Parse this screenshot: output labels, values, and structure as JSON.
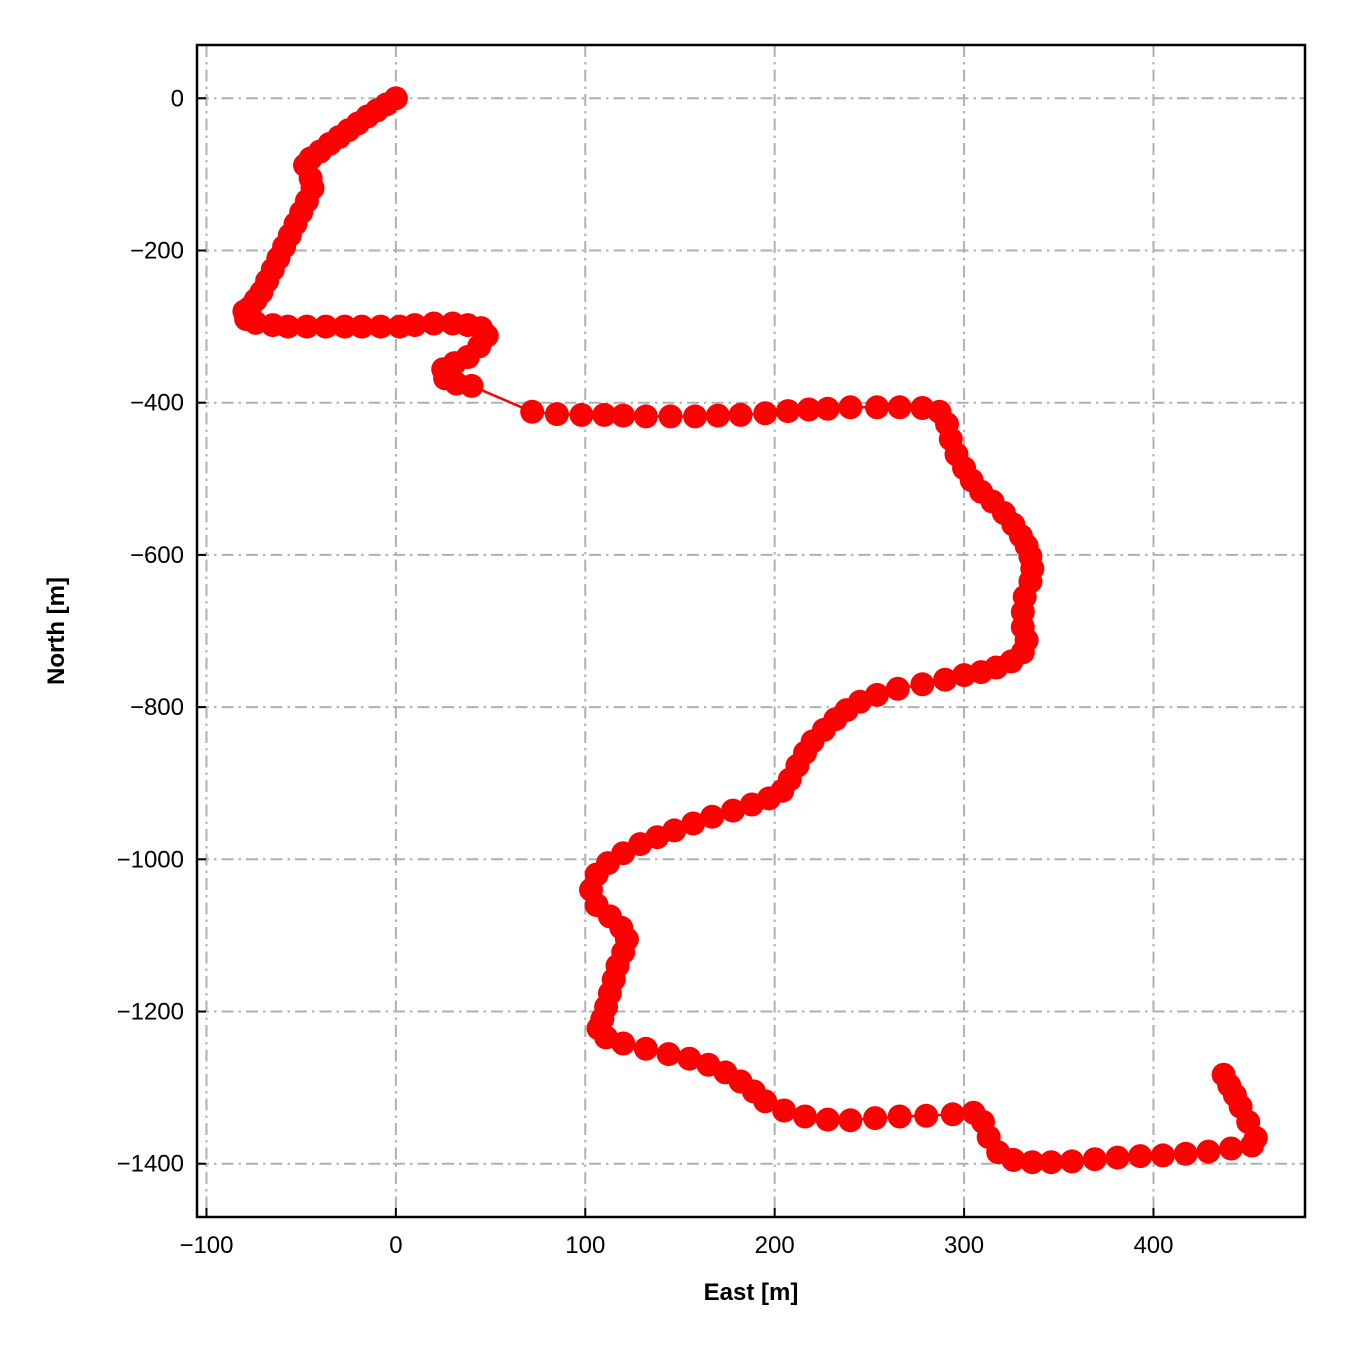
{
  "chart_data": {
    "type": "scatter",
    "title": "",
    "xlabel": "East [m]",
    "ylabel": "North [m]",
    "xlim": [
      -105,
      480
    ],
    "ylim": [
      -1470,
      70
    ],
    "xticks": [
      -100,
      0,
      100,
      200,
      300,
      400
    ],
    "yticks": [
      0,
      -200,
      -400,
      -600,
      -800,
      -1000,
      -1200,
      -1400
    ],
    "xtick_labels": [
      "−100",
      "0",
      "100",
      "200",
      "300",
      "400"
    ],
    "ytick_labels": [
      "0",
      "−200",
      "−400",
      "−600",
      "−800",
      "−1000",
      "−1200",
      "−1400"
    ],
    "grid": true,
    "colors": {
      "series": "#ff0000",
      "grid": "#b0b0b0",
      "frame": "#000000"
    },
    "series": [
      {
        "style": "line-with-markers",
        "x": [
          0,
          -5,
          -10,
          -15,
          -20,
          -25,
          -30,
          -35,
          -40,
          -45,
          -48,
          -45,
          -44,
          -47,
          -50,
          -53,
          -56,
          -59,
          -62,
          -65,
          -68,
          -71,
          -74,
          -77,
          -80,
          -79,
          -74,
          -65,
          -57,
          -47,
          -37,
          -27,
          -18,
          -8,
          2,
          10,
          20,
          30,
          38,
          45,
          48,
          44,
          38,
          31,
          25,
          26,
          32,
          40,
          72,
          85,
          98,
          110,
          120,
          132,
          145,
          158,
          170,
          182,
          195,
          207,
          218,
          228,
          240,
          254,
          266,
          278,
          287,
          291,
          293,
          296,
          300,
          304,
          309,
          315,
          321,
          326,
          330,
          333,
          335,
          336,
          335,
          332,
          331,
          331,
          333,
          331,
          325,
          317,
          309,
          300,
          290,
          278,
          265,
          254,
          245,
          238,
          232,
          226,
          220,
          216,
          212,
          208,
          204,
          197,
          188,
          178,
          167,
          157,
          147,
          138,
          129,
          120,
          112,
          106,
          103,
          106,
          113,
          119,
          122,
          120,
          117,
          115,
          113,
          111,
          109,
          107,
          111,
          120,
          132,
          144,
          155,
          165,
          174,
          182,
          189,
          195,
          205,
          216,
          228,
          240,
          253,
          266,
          280,
          294,
          305,
          310,
          313,
          318,
          326,
          336,
          346,
          357,
          369,
          381,
          393,
          405,
          417,
          429,
          441,
          452,
          454,
          450,
          446,
          443,
          440,
          437
        ],
        "y": [
          0,
          -8,
          -16,
          -24,
          -33,
          -42,
          -51,
          -60,
          -70,
          -79,
          -88,
          -105,
          -118,
          -135,
          -150,
          -165,
          -180,
          -195,
          -210,
          -225,
          -240,
          -255,
          -265,
          -275,
          -280,
          -290,
          -295,
          -298,
          -300,
          -300,
          -300,
          -300,
          -300,
          -300,
          -300,
          -298,
          -296,
          -296,
          -298,
          -302,
          -312,
          -326,
          -340,
          -348,
          -356,
          -368,
          -375,
          -378,
          -412,
          -415,
          -416,
          -416,
          -417,
          -418,
          -418,
          -418,
          -417,
          -416,
          -414,
          -411,
          -409,
          -408,
          -406,
          -406,
          -406,
          -407,
          -412,
          -428,
          -448,
          -468,
          -486,
          -502,
          -517,
          -530,
          -545,
          -560,
          -575,
          -588,
          -602,
          -618,
          -635,
          -655,
          -675,
          -695,
          -712,
          -728,
          -740,
          -748,
          -754,
          -758,
          -764,
          -770,
          -776,
          -784,
          -793,
          -804,
          -816,
          -830,
          -845,
          -860,
          -877,
          -895,
          -910,
          -920,
          -928,
          -936,
          -944,
          -953,
          -962,
          -971,
          -980,
          -992,
          -1005,
          -1020,
          -1040,
          -1060,
          -1075,
          -1090,
          -1105,
          -1122,
          -1140,
          -1158,
          -1176,
          -1194,
          -1210,
          -1222,
          -1234,
          -1242,
          -1249,
          -1256,
          -1262,
          -1270,
          -1280,
          -1292,
          -1305,
          -1318,
          -1330,
          -1338,
          -1342,
          -1343,
          -1340,
          -1338,
          -1337,
          -1335,
          -1333,
          -1345,
          -1365,
          -1385,
          -1395,
          -1398,
          -1398,
          -1397,
          -1394,
          -1392,
          -1390,
          -1389,
          -1387,
          -1384,
          -1380,
          -1376,
          -1366,
          -1345,
          -1325,
          -1310,
          -1297,
          -1283
        ]
      }
    ]
  }
}
